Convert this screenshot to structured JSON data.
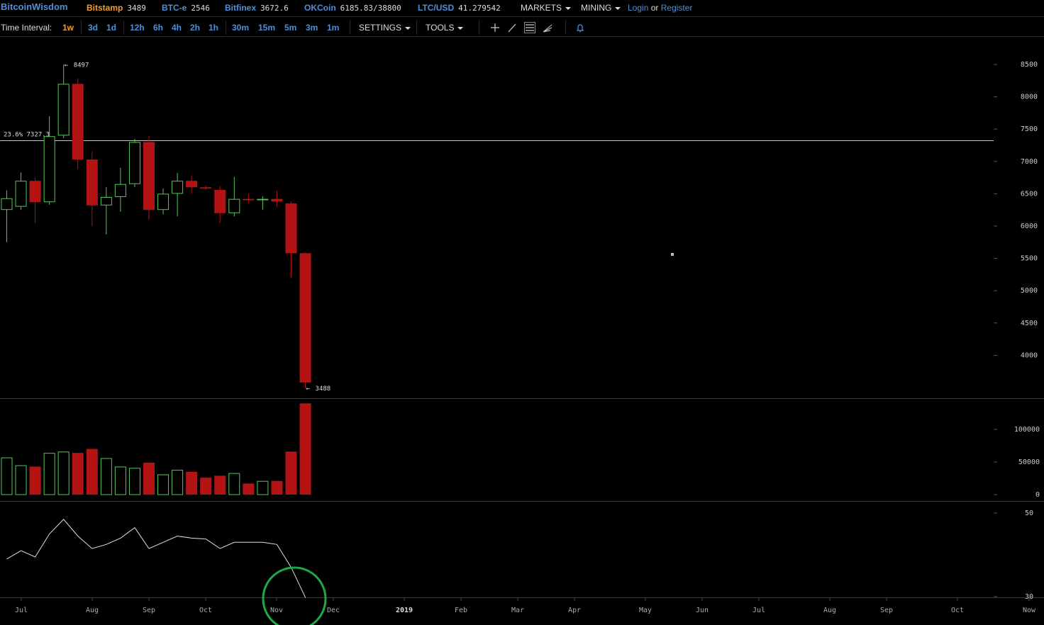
{
  "topbar": {
    "brand": "BitcoinWisdom",
    "markets": [
      {
        "exchange": "Bitstamp",
        "price": "3489"
      },
      {
        "exchange": "BTC-e",
        "price": "2546"
      },
      {
        "exchange": "Bitfinex",
        "price": "3672.6"
      },
      {
        "exchange": "OKCoin",
        "price": "6185.83/38800"
      },
      {
        "exchange": "LTC/USD",
        "price": "41.279542"
      }
    ],
    "markets_menu": "MARKETS",
    "mining_menu": "MINING",
    "login": "Login",
    "or": "or",
    "register": "Register"
  },
  "toolbar": {
    "label": "Time Interval:",
    "intervals": [
      "1w",
      "3d",
      "1d",
      "12h",
      "6h",
      "4h",
      "2h",
      "1h",
      "30m",
      "15m",
      "5m",
      "3m",
      "1m"
    ],
    "active_interval": "1w",
    "settings": "SETTINGS",
    "tools": "TOOLS",
    "icons": [
      "crosshair-icon",
      "line-draw-icon",
      "fib-lines-icon",
      "fan-icon",
      "alert-bell-icon"
    ]
  },
  "chart_data": {
    "type": "candlestick",
    "price_ticks": [
      "8500",
      "8000",
      "7500",
      "7000",
      "6500",
      "6000",
      "5500",
      "5000",
      "4500",
      "4000"
    ],
    "high_label": "8497",
    "low_label": "3488",
    "fib_label": "23.6% 7327.3",
    "fib_level": 7327.3,
    "volume_ticks": [
      "100000",
      "50000",
      "0"
    ],
    "indicator_ticks": [
      "50",
      "30"
    ],
    "x_labels": [
      "Jul",
      "Aug",
      "Sep",
      "Oct",
      "Nov",
      "Dec",
      "2019",
      "Feb",
      "Mar",
      "Apr",
      "May",
      "Jun",
      "Jul",
      "Aug",
      "Sep",
      "Oct",
      "Now"
    ],
    "candles": [
      {
        "o": 6250,
        "h": 6550,
        "l": 5750,
        "c": 6430
      },
      {
        "o": 6300,
        "h": 6830,
        "l": 6250,
        "c": 6700
      },
      {
        "o": 6700,
        "h": 6750,
        "l": 6050,
        "c": 6370
      },
      {
        "o": 6370,
        "h": 7700,
        "l": 6330,
        "c": 7390
      },
      {
        "o": 7400,
        "h": 8497,
        "l": 7360,
        "c": 8200
      },
      {
        "o": 8200,
        "h": 8280,
        "l": 6880,
        "c": 7030
      },
      {
        "o": 7030,
        "h": 7150,
        "l": 6000,
        "c": 6320
      },
      {
        "o": 6320,
        "h": 6600,
        "l": 5870,
        "c": 6450
      },
      {
        "o": 6450,
        "h": 6900,
        "l": 6220,
        "c": 6650
      },
      {
        "o": 6650,
        "h": 7350,
        "l": 6600,
        "c": 7300
      },
      {
        "o": 7300,
        "h": 7400,
        "l": 6100,
        "c": 6250
      },
      {
        "o": 6250,
        "h": 6580,
        "l": 6180,
        "c": 6500
      },
      {
        "o": 6500,
        "h": 6820,
        "l": 6150,
        "c": 6700
      },
      {
        "o": 6700,
        "h": 6780,
        "l": 6500,
        "c": 6600
      },
      {
        "o": 6600,
        "h": 6620,
        "l": 6560,
        "c": 6580
      },
      {
        "o": 6560,
        "h": 6620,
        "l": 6050,
        "c": 6200
      },
      {
        "o": 6200,
        "h": 6760,
        "l": 6150,
        "c": 6420
      },
      {
        "o": 6420,
        "h": 6500,
        "l": 6350,
        "c": 6400
      },
      {
        "o": 6400,
        "h": 6460,
        "l": 6250,
        "c": 6420
      },
      {
        "o": 6420,
        "h": 6550,
        "l": 6300,
        "c": 6380
      },
      {
        "o": 6350,
        "h": 6380,
        "l": 5200,
        "c": 5580
      },
      {
        "o": 5580,
        "h": 5590,
        "l": 3488,
        "c": 3580
      }
    ],
    "volume": [
      57000,
      45000,
      43000,
      64000,
      66000,
      64000,
      70000,
      56000,
      43000,
      41000,
      49000,
      31000,
      38000,
      35000,
      26000,
      29000,
      33000,
      17000,
      21000,
      21000,
      66000,
      140000
    ],
    "indicator": [
      39,
      41,
      39.5,
      45,
      48.5,
      44.5,
      41.5,
      42.5,
      44,
      46.5,
      41.5,
      43,
      44.5,
      44,
      43.8,
      41.5,
      43,
      43,
      43,
      42.5,
      37,
      29.8
    ],
    "markers": [
      {
        "note": "green circle highlighting indicator end"
      }
    ]
  }
}
